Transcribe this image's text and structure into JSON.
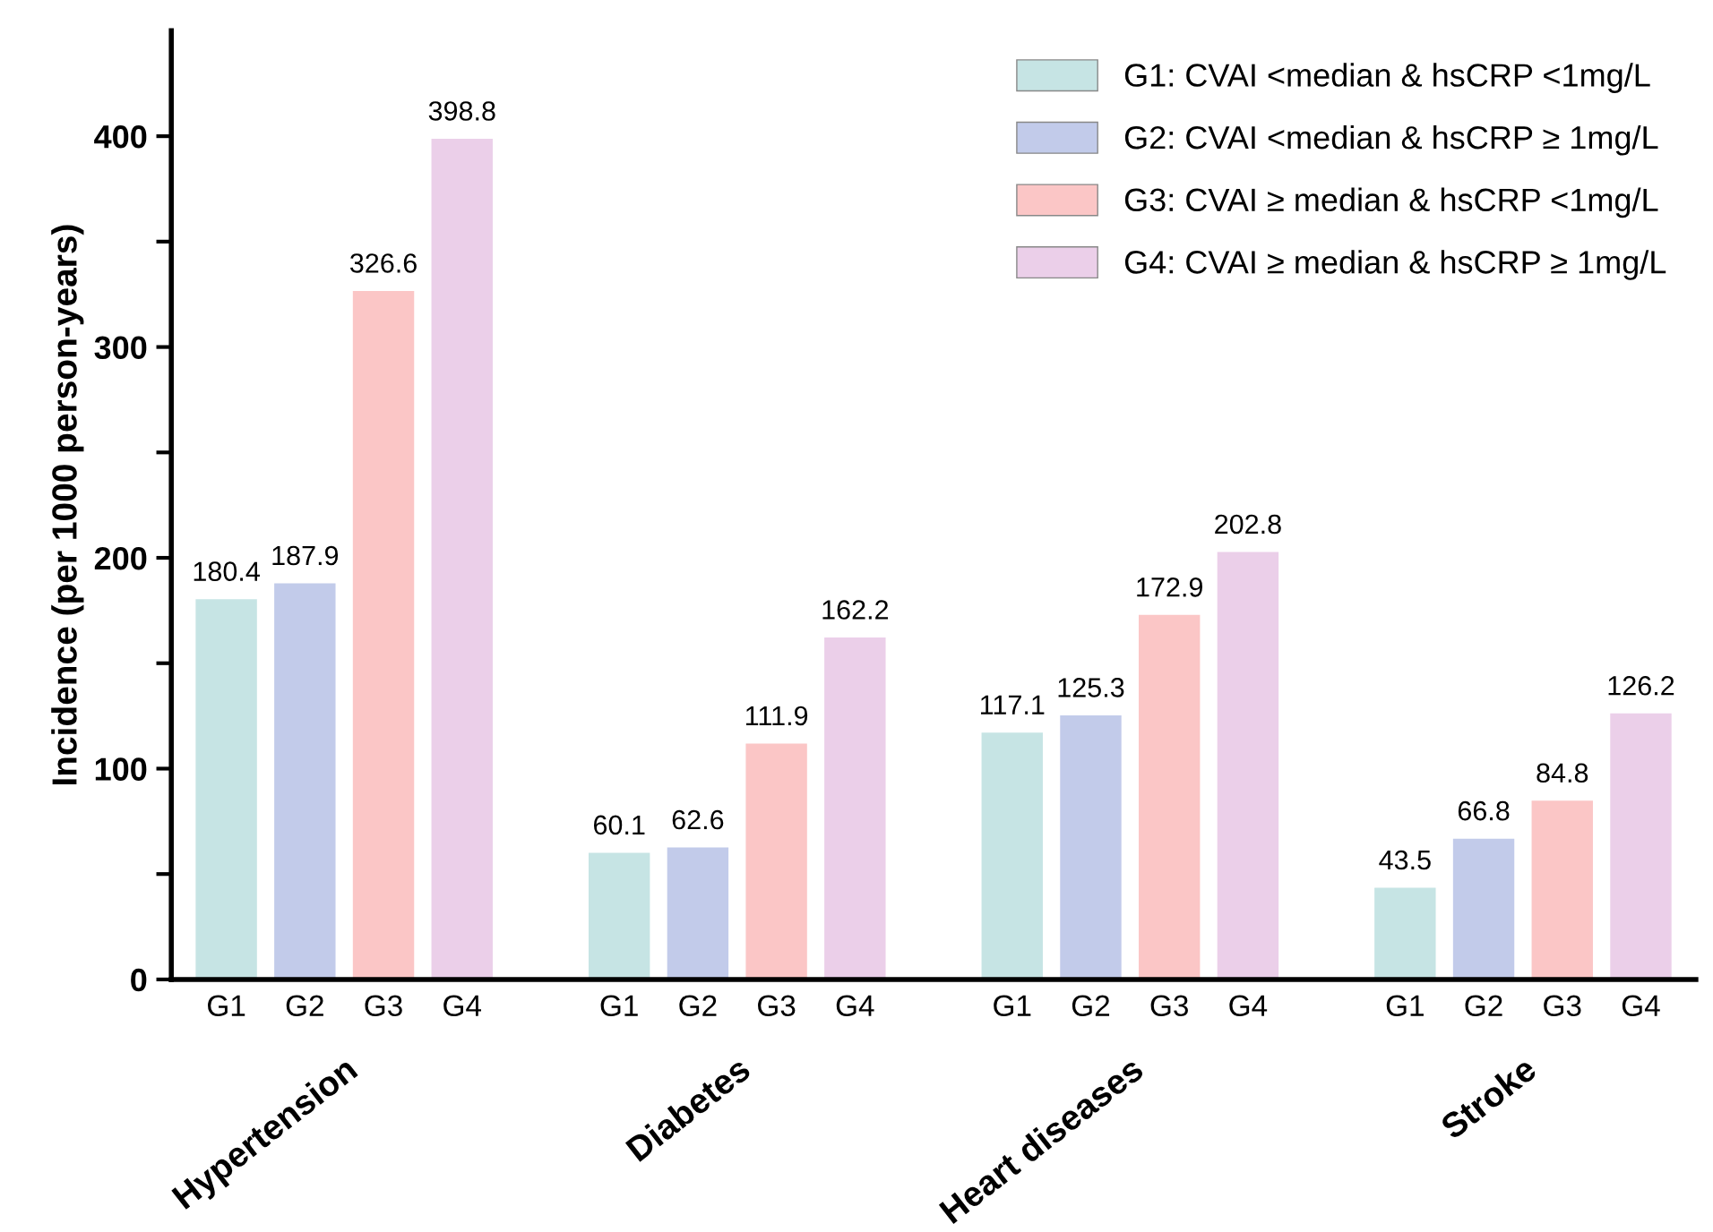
{
  "chart_data": {
    "type": "bar",
    "ylabel": "Incidence (per 1000 person-years)",
    "categories": [
      "G1",
      "G2",
      "G3",
      "G4",
      null,
      "G1",
      "G2",
      "G3",
      "G4",
      null,
      "G1",
      "G2",
      "G3",
      "G4",
      null,
      "G1",
      "G2",
      "G3",
      "G4"
    ],
    "series": [
      {
        "name": "G1: CVAI <median & hsCRP <1mg/L",
        "color": "#c6e4e4",
        "values": [
          180.4,
          null,
          null,
          null,
          null,
          60.1,
          null,
          null,
          null,
          null,
          117.1,
          null,
          null,
          null,
          null,
          43.5,
          null,
          null,
          null
        ]
      },
      {
        "name": "G2: CVAI <median & hsCRP ≥ 1mg/L",
        "color": "#c2cbea",
        "values": [
          null,
          187.9,
          null,
          null,
          null,
          null,
          62.6,
          null,
          null,
          null,
          null,
          125.3,
          null,
          null,
          null,
          null,
          66.8,
          null,
          null
        ]
      },
      {
        "name": "G3: CVAI ≥ median & hsCRP <1mg/L",
        "color": "#fbc6c6",
        "values": [
          null,
          null,
          326.6,
          null,
          null,
          null,
          null,
          111.9,
          null,
          null,
          null,
          null,
          172.9,
          null,
          null,
          null,
          null,
          84.8,
          null
        ]
      },
      {
        "name": "G4: CVAI ≥ median & hsCRP ≥ 1mg/L",
        "color": "#ebcfe9",
        "values": [
          null,
          null,
          null,
          398.8,
          null,
          null,
          null,
          null,
          162.2,
          null,
          null,
          null,
          null,
          202.8,
          null,
          null,
          null,
          null,
          126.2
        ]
      }
    ],
    "annotations": [
      "Hypertension",
      "Diabetes",
      "Heart diseases",
      "Stroke"
    ],
    "ylim": [
      0,
      450
    ],
    "yticks": [
      0,
      {
        "value": 50,
        "label": null
      },
      100,
      {
        "value": 150,
        "label": null
      },
      200,
      {
        "value": 250,
        "label": null
      },
      300,
      {
        "value": 350,
        "label": null
      },
      400
    ],
    "data_labels": true,
    "legend": "top right",
    "grid": false
  }
}
